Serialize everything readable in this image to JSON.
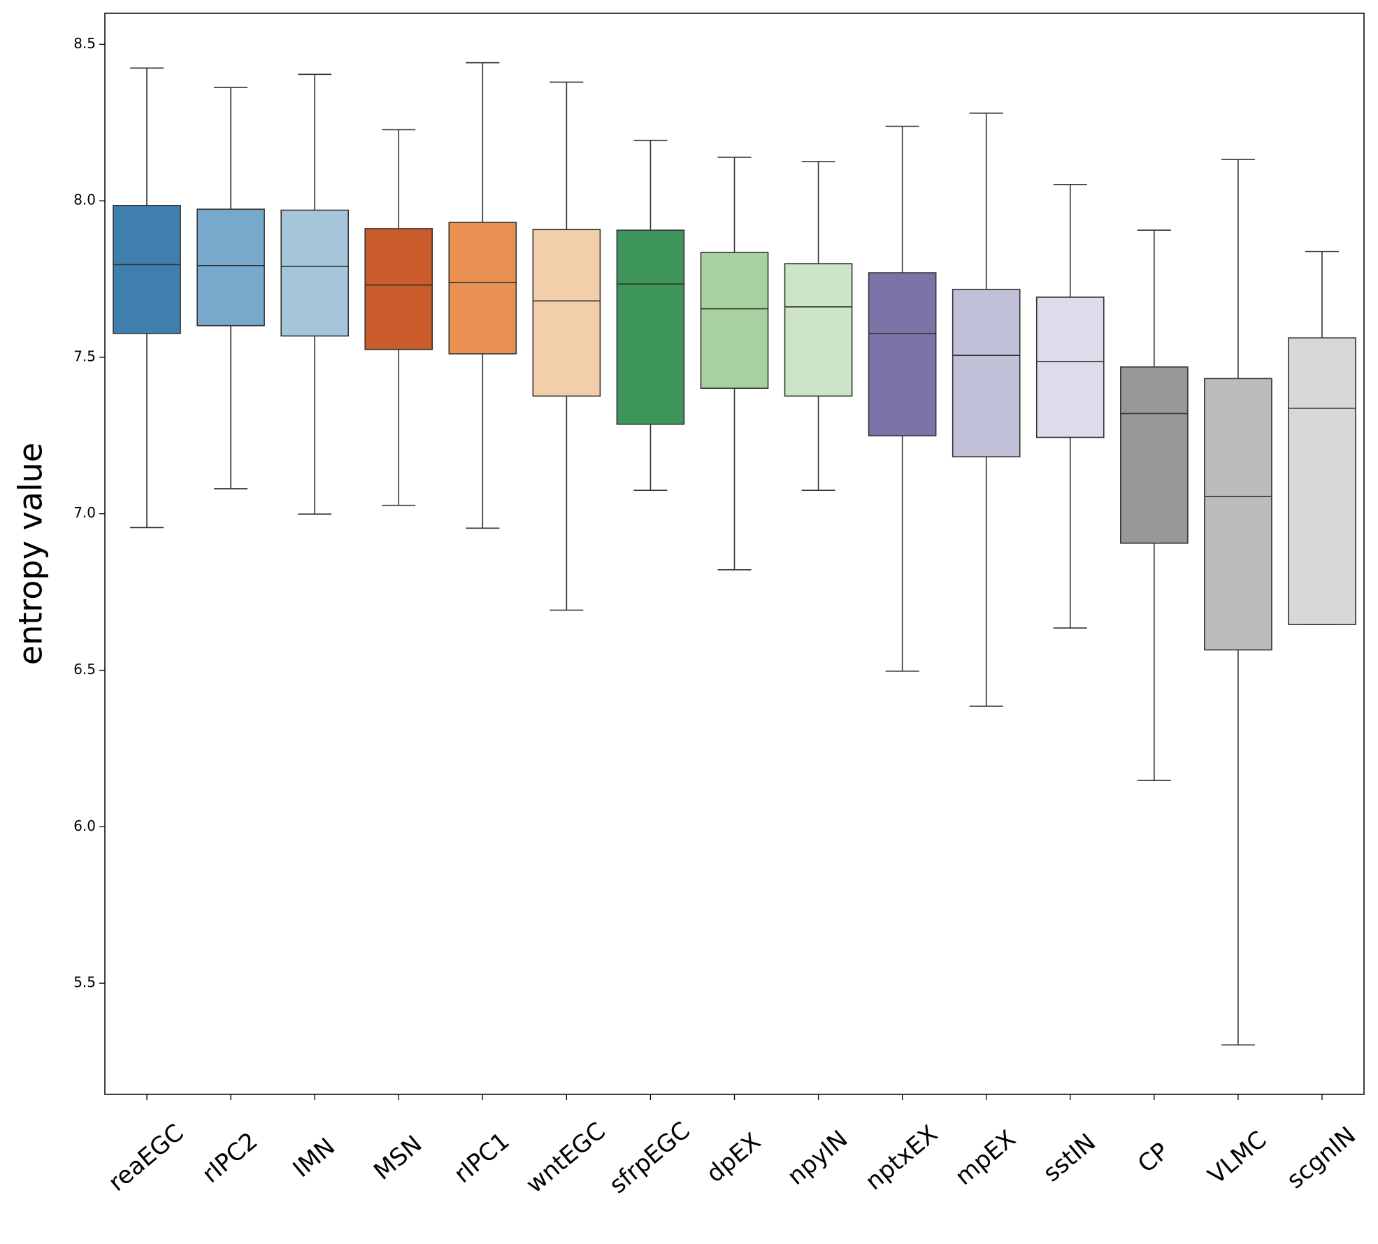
{
  "chart_data": {
    "type": "box",
    "y_label": "entropy value",
    "categories": [
      "reaEGC",
      "rIPC2",
      "IMN",
      "MSN",
      "rIPC1",
      "wntEGC",
      "sfrpEGC",
      "dpEX",
      "npyIN",
      "nptxEX",
      "mpEX",
      "sstIN",
      "CP",
      "VLMC",
      "scgnIN"
    ],
    "colors": [
      "#3f7fad",
      "#76a9cb",
      "#a5c5da",
      "#c95c2a",
      "#e89152",
      "#f2cfaa",
      "#3e955a",
      "#a8d1a0",
      "#cce5c6",
      "#7b74a8",
      "#c0c0d9",
      "#dcdcea",
      "#989898",
      "#bcbcbc",
      "#d8d8d8"
    ],
    "whislo": [
      6.956,
      7.08,
      6.999,
      7.027,
      6.954,
      6.692,
      7.075,
      6.821,
      7.075,
      6.497,
      6.385,
      6.635,
      6.148,
      5.303,
      6.646
    ],
    "q1": [
      7.576,
      7.601,
      7.568,
      7.525,
      7.511,
      7.376,
      7.286,
      7.401,
      7.376,
      7.249,
      7.182,
      7.244,
      6.906,
      6.565,
      6.646
    ],
    "med": [
      7.796,
      7.793,
      7.79,
      7.731,
      7.739,
      7.68,
      7.734,
      7.655,
      7.661,
      7.576,
      7.506,
      7.486,
      7.32,
      7.055,
      7.337
    ],
    "q3": [
      7.985,
      7.973,
      7.97,
      7.911,
      7.931,
      7.908,
      7.906,
      7.835,
      7.799,
      7.77,
      7.717,
      7.692,
      7.469,
      7.432,
      7.562
    ],
    "whishi": [
      8.424,
      8.362,
      8.404,
      8.227,
      8.441,
      8.379,
      8.193,
      8.139,
      8.125,
      8.238,
      8.28,
      8.052,
      7.906,
      8.132,
      7.838
    ],
    "ylim": [
      5.145,
      8.599
    ],
    "yticks": [
      5.5,
      {
        "value": 6,
        "label": "6.0"
      },
      6.5,
      {
        "value": 7,
        "label": "7.0"
      },
      7.5,
      {
        "value": 8,
        "label": "8.0"
      },
      8.5
    ]
  }
}
